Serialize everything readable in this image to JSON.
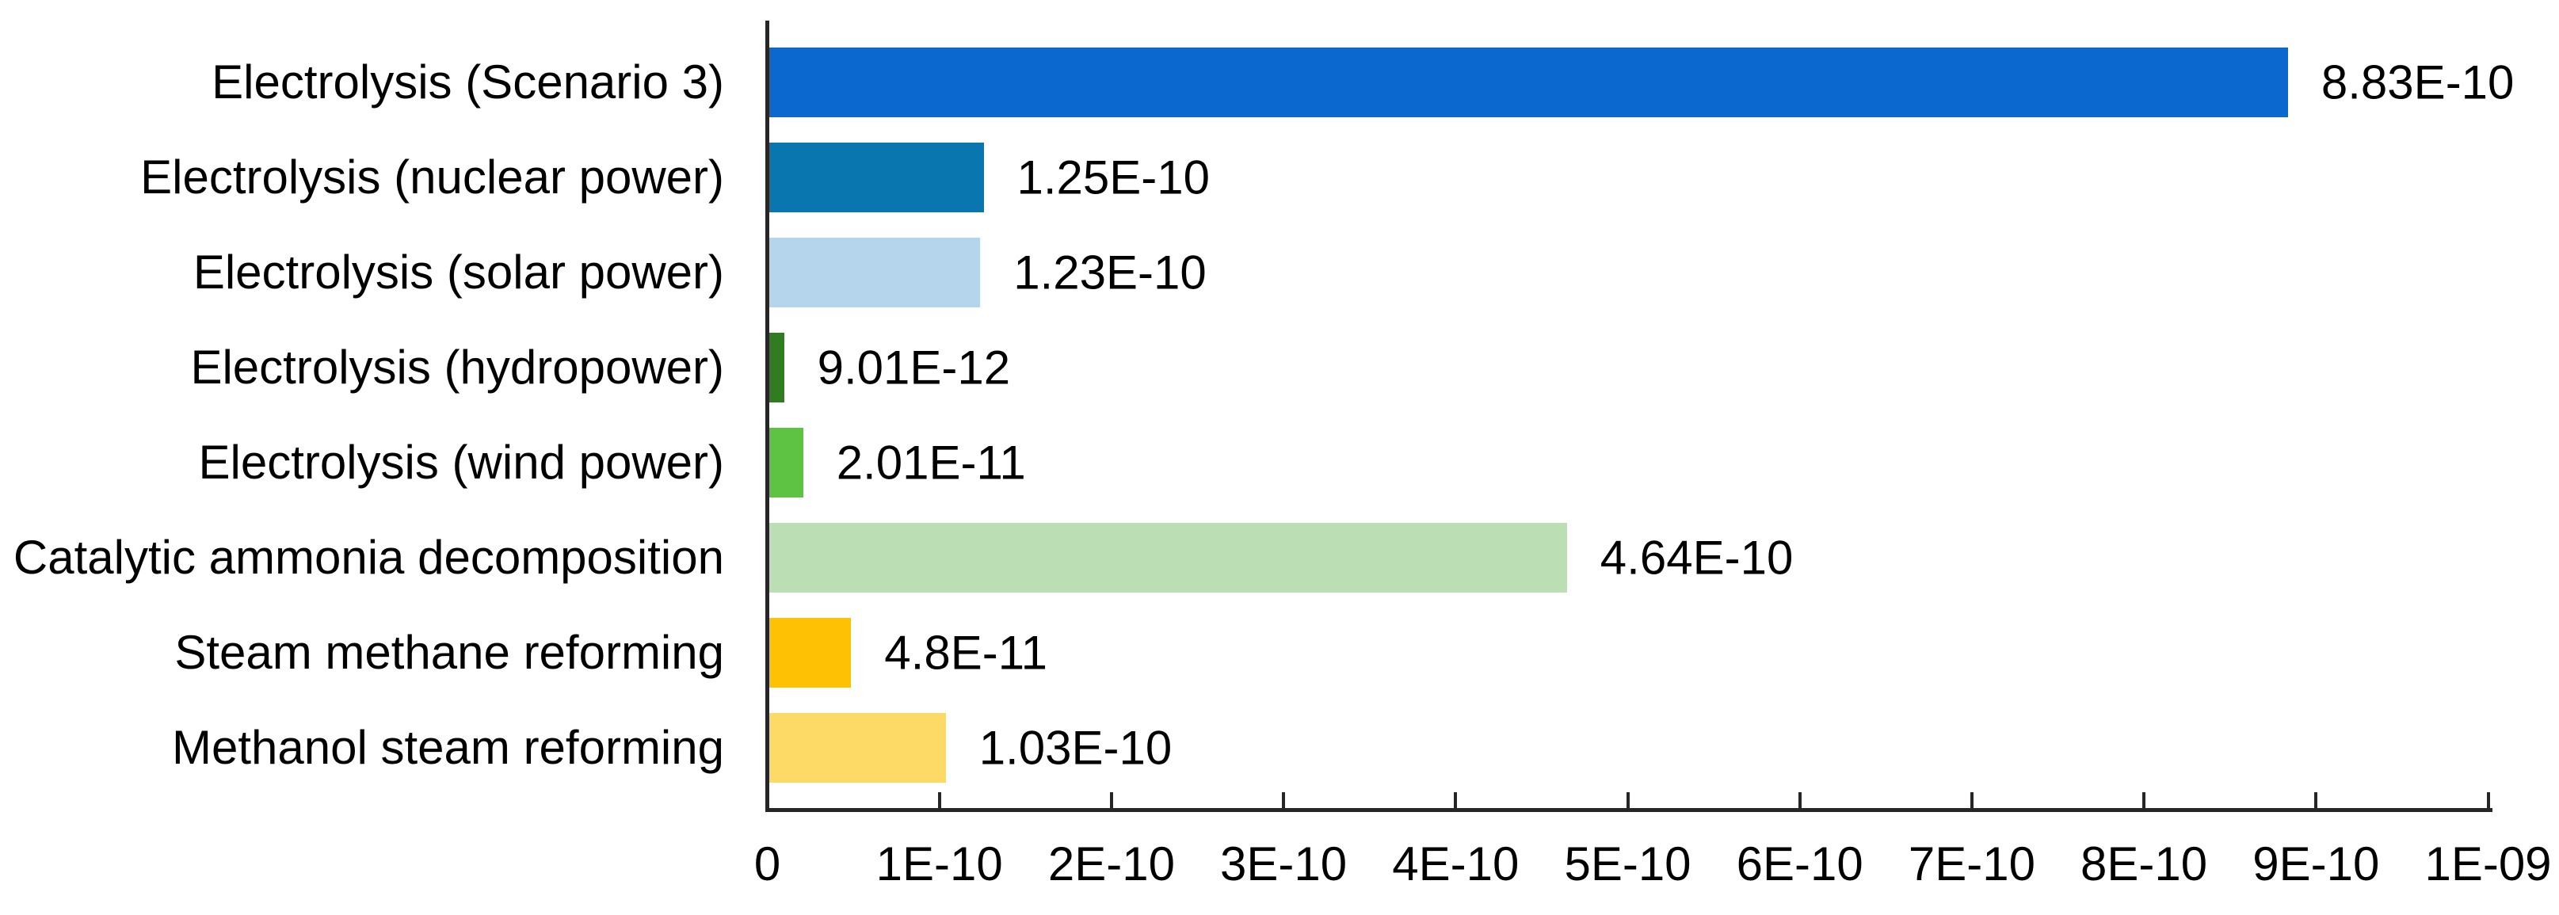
{
  "chart_data": {
    "type": "bar",
    "orientation": "horizontal",
    "title": "",
    "xlabel": "",
    "ylabel": "",
    "categories": [
      "Electrolysis (Scenario 3)",
      "Electrolysis (nuclear power)",
      "Electrolysis (solar power)",
      "Electrolysis (hydropower)",
      "Electrolysis (wind power)",
      "Catalytic ammonia decomposition",
      "Steam methane reforming",
      "Methanol steam reforming"
    ],
    "values": [
      8.83e-10,
      1.25e-10,
      1.23e-10,
      9.01e-12,
      2.01e-11,
      4.64e-10,
      4.8e-11,
      1.03e-10
    ],
    "value_labels": [
      "8.83E-10",
      "1.25E-10",
      "1.23E-10",
      "9.01E-12",
      "2.01E-11",
      "4.64E-10",
      "4.8E-11",
      "1.03E-10"
    ],
    "bar_colors": [
      "#0B68CE",
      "#0A76B0",
      "#B5D5EC",
      "#2F7D20",
      "#5EC343",
      "#BCDEB4",
      "#FFC103",
      "#FDD966"
    ],
    "x_axis": {
      "min": 0,
      "max": 1e-09,
      "tick_labels": [
        "0",
        "1E-10",
        "2E-10",
        "3E-10",
        "4E-10",
        "5E-10",
        "6E-10",
        "7E-10",
        "8E-10",
        "9E-10",
        "1E-09"
      ]
    },
    "grid": false,
    "legend": "none",
    "axis_color": "#262626",
    "text_color": "#000000"
  }
}
